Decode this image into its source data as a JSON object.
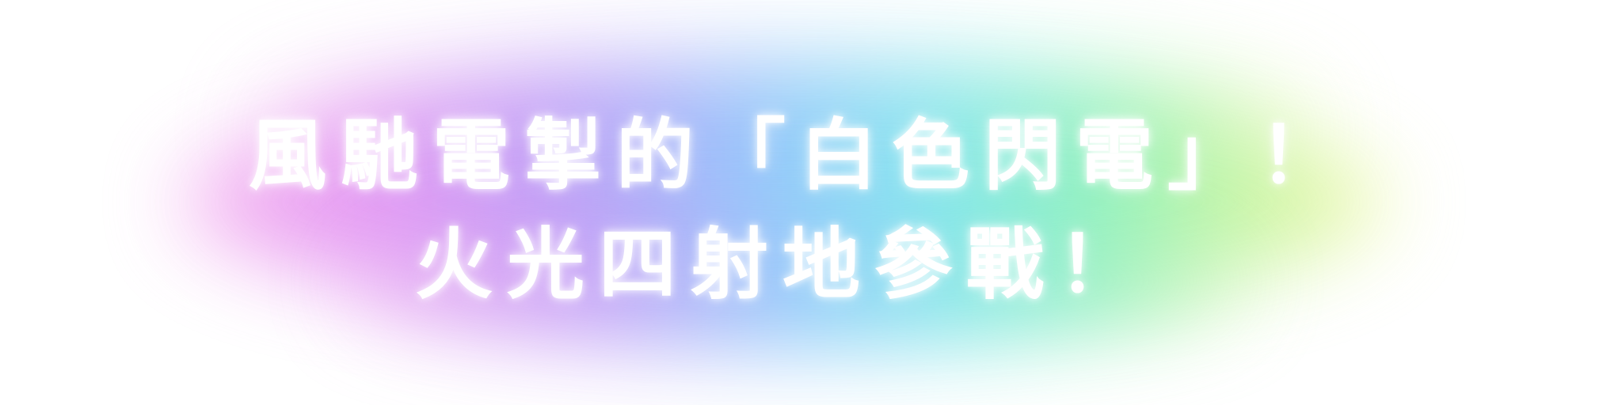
{
  "headline": {
    "line1": "風馳電掣的「白色閃電」！",
    "line2": "火光四射地參戰！"
  },
  "colors": {
    "background": "#ffffff",
    "text": "#ffffff",
    "glow_pink": "#f4a6ec",
    "glow_violet": "#b69af6",
    "glow_blue": "#8ec4fb",
    "glow_cyan": "#7ee6ee",
    "glow_green": "#86f0b8",
    "glow_yellow": "#f2f7a0"
  }
}
